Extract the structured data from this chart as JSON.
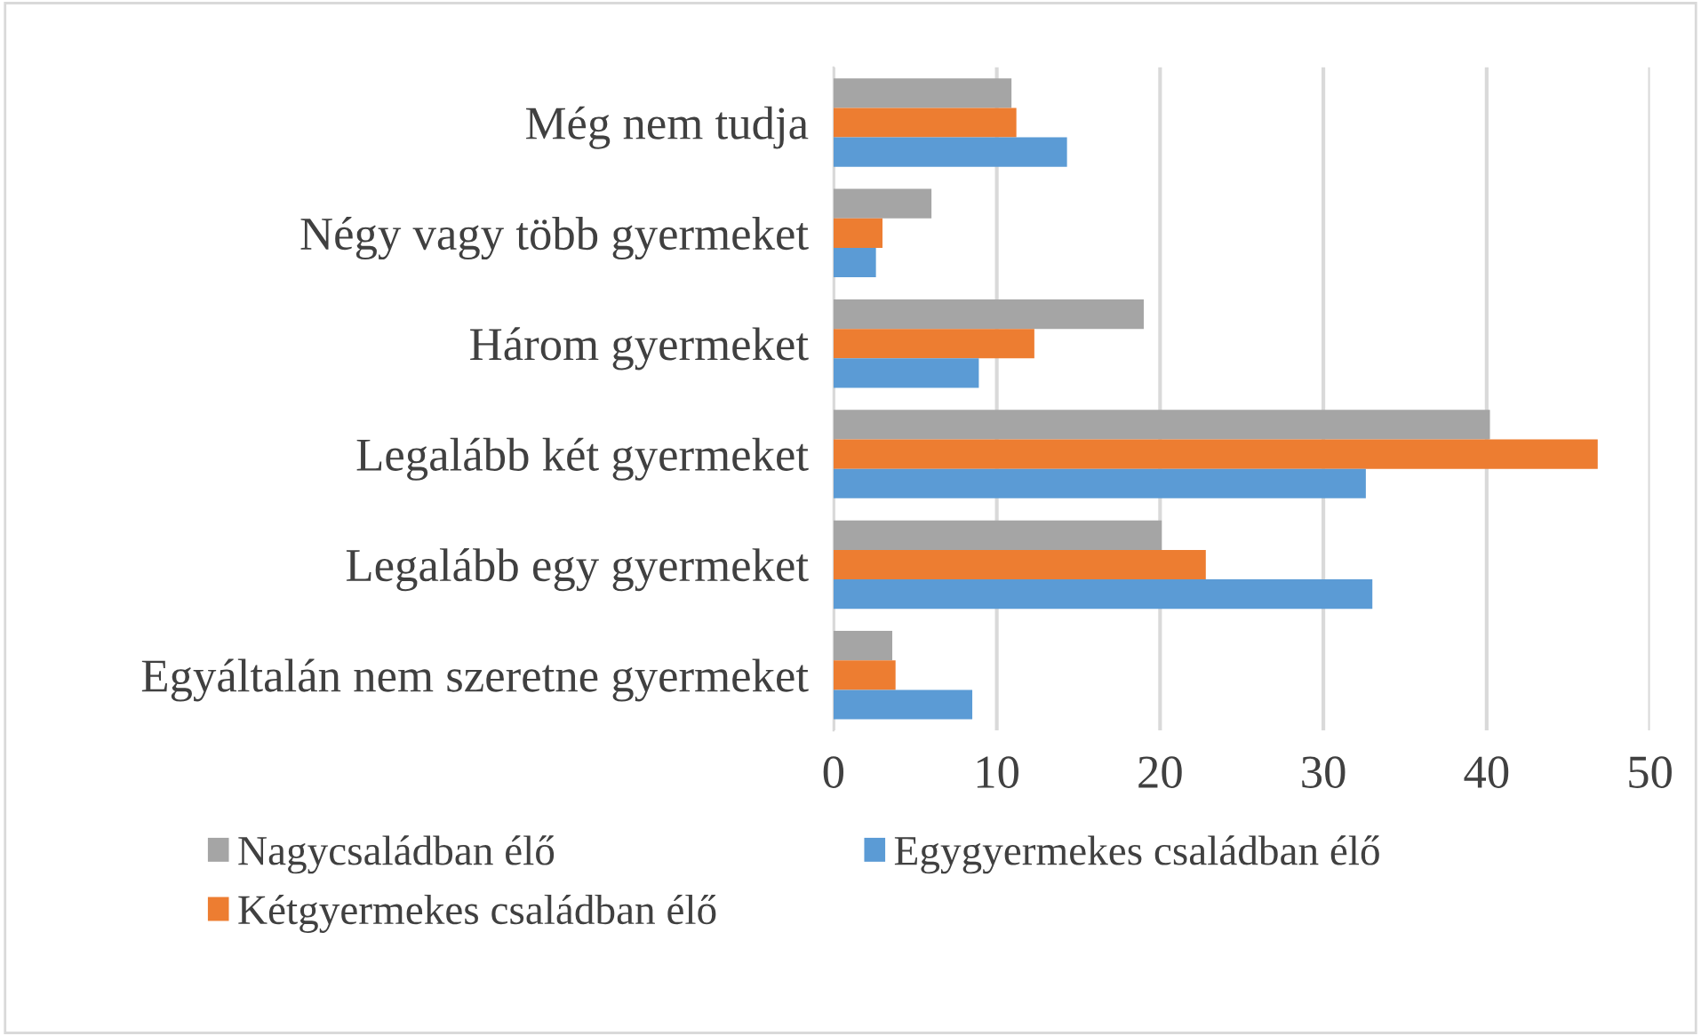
{
  "chart_data": {
    "type": "bar",
    "orientation": "horizontal",
    "categories": [
      "Még nem tudja",
      "Négy vagy több gyermeket",
      "Három gyermeket",
      "Legalább két gyermeket",
      "Legalább egy gyermeket",
      "Egyáltalán nem szeretne gyermeket"
    ],
    "series": [
      {
        "name": "Nagycsaládban élő",
        "color": "#a5a5a5",
        "values": [
          10.9,
          6.0,
          19.0,
          40.2,
          20.1,
          3.6
        ]
      },
      {
        "name": "Kétgyermekes családban élő",
        "color": "#ed7d31",
        "values": [
          11.2,
          3.0,
          12.3,
          46.8,
          22.8,
          3.8
        ]
      },
      {
        "name": "Egygyermekes családban élő",
        "color": "#5b9bd5",
        "values": [
          14.3,
          2.6,
          8.9,
          32.6,
          33.0,
          8.5
        ]
      }
    ],
    "xlim": [
      0,
      50
    ],
    "xticks": [
      0,
      10,
      20,
      30,
      40,
      50
    ],
    "grid": "x",
    "legend": "bottom"
  }
}
